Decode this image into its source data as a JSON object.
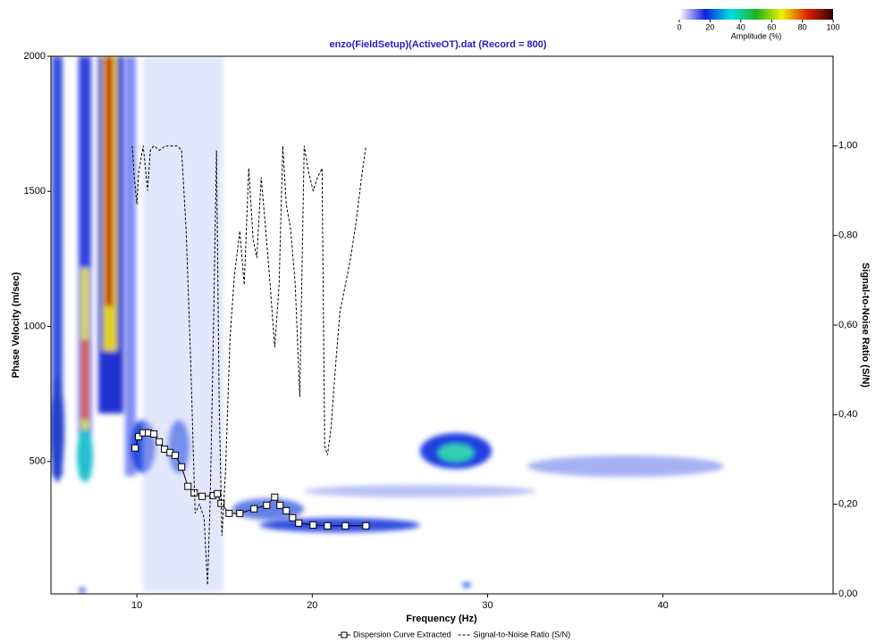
{
  "chart_data": {
    "type": "line",
    "title": "enzo(FieldSetup)(ActiveOT).dat (Record = 800)",
    "x_label": "Frequency (Hz)",
    "y_label": "Phase Velocity (m/sec)",
    "y2_label": "Signal-to-Noise Ratio (S/N)",
    "xlim": [
      5.1,
      49.7
    ],
    "xticks": [
      10,
      20,
      30,
      40
    ],
    "ylim": [
      10,
      2000
    ],
    "yticks": [
      500,
      1000,
      1500,
      2000
    ],
    "y2lim": [
      0,
      1.2
    ],
    "y2ticks": [
      {
        "value": 0,
        "label": "0,00"
      },
      {
        "value": 0.2,
        "label": "0,20"
      },
      {
        "value": 0.4,
        "label": "0,40"
      },
      {
        "value": 0.6,
        "label": "0,60"
      },
      {
        "value": 0.8,
        "label": "0,80"
      },
      {
        "value": 1.0,
        "label": "1,00"
      }
    ],
    "series": [
      {
        "name": "Dispersion Curve Extracted",
        "color": "#000000",
        "marker": "square",
        "x": [
          9.9,
          10.1,
          10.36,
          10.66,
          10.97,
          11.28,
          11.58,
          11.89,
          12.19,
          12.55,
          12.91,
          13.27,
          13.72,
          14.34,
          14.59,
          14.8,
          15.26,
          15.87,
          16.68,
          17.4,
          17.86,
          18.16,
          18.52,
          18.88,
          19.23,
          20.05,
          20.87,
          21.89,
          23.06
        ],
        "values": [
          550,
          592,
          606,
          606,
          602,
          573,
          546,
          533,
          523,
          480,
          408,
          384,
          371,
          374,
          381,
          345,
          308,
          308,
          325,
          338,
          368,
          338,
          318,
          292,
          272,
          265,
          262,
          262,
          262
        ]
      },
      {
        "name": "Signal-to-Noise Ratio (S/N)",
        "color": "#000000",
        "dash": true,
        "axis": "y2",
        "x": [
          9.74,
          9.85,
          10.0,
          10.1,
          10.36,
          10.61,
          10.77,
          10.97,
          11.28,
          11.63,
          11.99,
          12.3,
          12.55,
          12.81,
          13.06,
          13.32,
          13.57,
          13.83,
          14.03,
          14.18,
          14.34,
          14.54,
          14.69,
          14.85,
          15.05,
          15.31,
          15.56,
          15.87,
          16.12,
          16.38,
          16.63,
          16.84,
          17.09,
          17.35,
          17.6,
          17.86,
          18.11,
          18.32,
          18.52,
          18.78,
          19.03,
          19.29,
          19.54,
          19.8,
          20.05,
          20.31,
          20.56,
          20.71,
          20.87,
          21.07,
          21.33,
          21.58,
          21.89,
          22.19,
          22.5,
          22.81,
          23.06
        ],
        "values": [
          1.0,
          0.93,
          0.87,
          0.94,
          1.0,
          0.9,
          0.99,
          1.0,
          0.99,
          1.0,
          1.0,
          1.0,
          0.99,
          0.81,
          0.53,
          0.18,
          0.2,
          0.17,
          0.02,
          0.21,
          0.53,
          0.99,
          0.43,
          0.13,
          0.27,
          0.57,
          0.71,
          0.81,
          0.69,
          0.95,
          0.79,
          0.75,
          0.93,
          0.81,
          0.69,
          0.55,
          0.69,
          1.0,
          0.87,
          0.81,
          0.69,
          0.44,
          1.0,
          0.94,
          0.9,
          0.93,
          0.95,
          0.33,
          0.31,
          0.37,
          0.51,
          0.63,
          0.69,
          0.75,
          0.83,
          0.93,
          1.0
        ]
      }
    ],
    "colorbar": {
      "label": "Amplitude (%)",
      "lim": [
        0,
        100
      ],
      "ticks": [
        0,
        20,
        40,
        60,
        80,
        100
      ],
      "colormap": [
        "#ffffff",
        "#1020e0",
        "#00e0e0",
        "#20b020",
        "#f0f000",
        "#e02000",
        "#300000"
      ]
    }
  }
}
